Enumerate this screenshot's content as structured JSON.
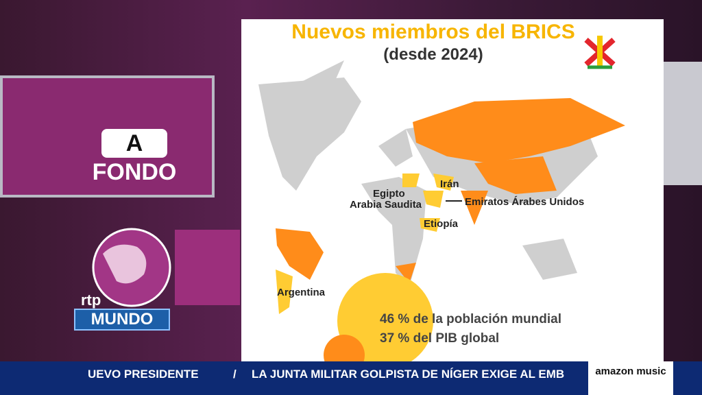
{
  "show": {
    "badge": "A",
    "program": "FONDO",
    "channel_small": "rtp",
    "channel": "MUNDO"
  },
  "infographic": {
    "title": "Nuevos miembros del BRICS",
    "subtitle": "(desde 2024)",
    "labels": {
      "iran": "Irán",
      "egypt": "Egipto",
      "saudi": "Arabia Saudita",
      "uae": "Emiratos Árabes Unidos",
      "ethiopia": "Etiopía",
      "argentina": "Argentina"
    },
    "stats": [
      "46 % de la población mundial",
      "37 % del PIB global"
    ]
  },
  "ticker": {
    "items": [
      "UEVO PRESIDENTE",
      "/",
      "LA JUNTA MILITAR GOLPISTA DE NÍGER EXIGE AL EMB"
    ],
    "sponsor": "amazon music"
  }
}
